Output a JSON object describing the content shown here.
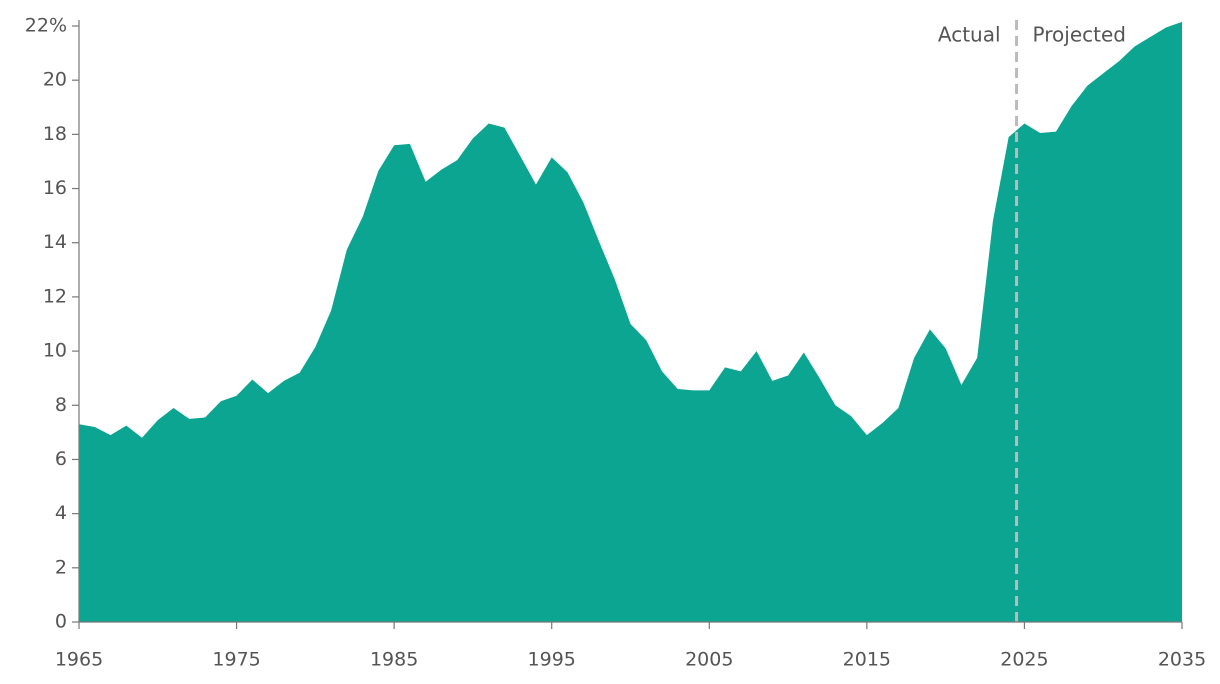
{
  "chart_data": {
    "type": "area",
    "x": [
      1965,
      1966,
      1967,
      1968,
      1969,
      1970,
      1971,
      1972,
      1973,
      1974,
      1975,
      1976,
      1977,
      1978,
      1979,
      1980,
      1981,
      1982,
      1983,
      1984,
      1985,
      1986,
      1987,
      1988,
      1989,
      1990,
      1991,
      1992,
      1993,
      1994,
      1995,
      1996,
      1997,
      1998,
      1999,
      2000,
      2001,
      2002,
      2003,
      2004,
      2005,
      2006,
      2007,
      2008,
      2009,
      2010,
      2011,
      2012,
      2013,
      2014,
      2015,
      2016,
      2017,
      2018,
      2019,
      2020,
      2021,
      2022,
      2023,
      2024,
      2025,
      2026,
      2027,
      2028,
      2029,
      2030,
      2031,
      2032,
      2033,
      2034,
      2035
    ],
    "values": [
      7.3,
      7.2,
      6.9,
      7.25,
      6.8,
      7.45,
      7.9,
      7.5,
      7.55,
      8.15,
      8.35,
      8.95,
      8.45,
      8.9,
      9.2,
      10.15,
      11.5,
      13.75,
      14.95,
      16.65,
      17.6,
      17.65,
      16.25,
      16.7,
      17.05,
      17.85,
      18.4,
      18.25,
      17.2,
      16.15,
      17.15,
      16.6,
      15.5,
      14.05,
      12.65,
      11.0,
      10.4,
      9.25,
      8.6,
      8.55,
      8.55,
      9.4,
      9.25,
      10.0,
      8.9,
      9.1,
      9.95,
      9.0,
      8.0,
      7.6,
      6.9,
      7.35,
      7.9,
      9.75,
      10.8,
      10.1,
      8.75,
      9.75,
      14.8,
      17.9,
      18.4,
      18.05,
      18.1,
      19.05,
      19.8,
      20.25,
      20.7,
      21.25,
      21.6,
      21.95,
      22.15
    ],
    "color": "#0ca592",
    "xlim": [
      1965,
      2035
    ],
    "xticks": [
      1965,
      1975,
      1985,
      1995,
      2005,
      2015,
      2025,
      2035
    ],
    "ylim": [
      0,
      22
    ],
    "yticks": [
      0,
      2,
      4,
      6,
      8,
      10,
      12,
      14,
      16,
      18,
      20,
      {
        "value": 22,
        "label": "22%"
      }
    ],
    "divider": 2024.5,
    "annotations": [
      "Actual",
      "Projected"
    ]
  }
}
